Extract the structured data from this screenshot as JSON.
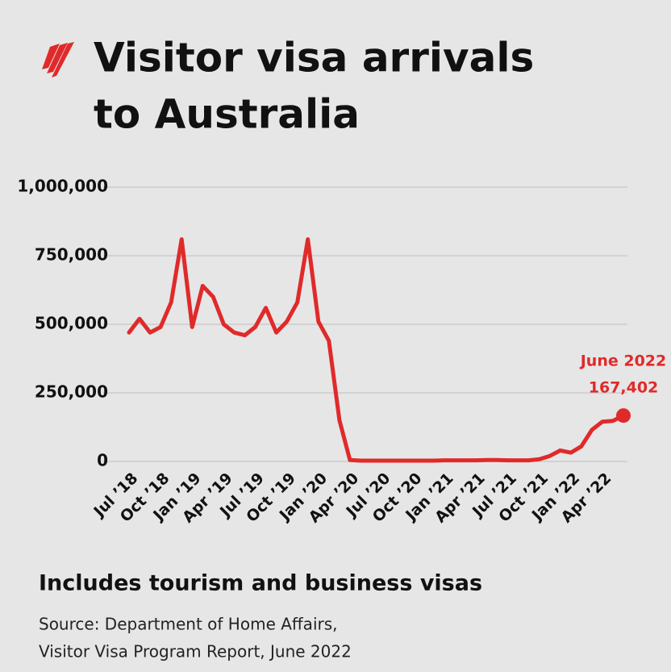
{
  "chart_data": {
    "type": "line",
    "title": [
      "Visitor visa arrivals",
      "to Australia"
    ],
    "subtitle": "Includes tourism and business visas",
    "source": [
      "Source: Department of Home Affairs,",
      "Visitor Visa Program Report, June 2022"
    ],
    "categories": [
      "Jul ’18",
      null,
      null,
      "Oct ’18",
      null,
      null,
      "Jan ’19",
      null,
      null,
      "Apr ’19",
      null,
      null,
      "Jul ’19",
      null,
      null,
      "Oct ’19",
      null,
      null,
      "Jan ’20",
      null,
      null,
      "Apr ’20",
      null,
      null,
      "Jul ’20",
      null,
      null,
      "Oct ’20",
      null,
      null,
      "Jan ’21",
      null,
      null,
      "Apr ’21",
      null,
      null,
      "Jul ’21",
      null,
      null,
      "Oct ’21",
      null,
      null,
      "Jan ’22",
      null,
      null,
      "Apr ’22",
      null,
      null
    ],
    "values": [
      470000,
      520000,
      470000,
      490000,
      580000,
      810000,
      490000,
      640000,
      600000,
      500000,
      470000,
      460000,
      490000,
      560000,
      470000,
      510000,
      580000,
      810000,
      510000,
      440000,
      150000,
      5000,
      3000,
      3000,
      3000,
      3000,
      3000,
      3000,
      3000,
      3000,
      4000,
      4000,
      4000,
      4000,
      5000,
      5000,
      4000,
      4000,
      4000,
      8000,
      20000,
      40000,
      32000,
      55000,
      115000,
      145000,
      148000,
      167402
    ],
    "value_labels": [
      null,
      null,
      null,
      null,
      null,
      null,
      null,
      null,
      null,
      null,
      null,
      null,
      null,
      null,
      null,
      null,
      null,
      null,
      null,
      null,
      null,
      null,
      null,
      null,
      null,
      null,
      null,
      null,
      null,
      null,
      null,
      null,
      null,
      null,
      null,
      null,
      null,
      null,
      null,
      null,
      null,
      null,
      null,
      null,
      null,
      null,
      null,
      "167,402"
    ],
    "annotation": "June 2022",
    "color": "#e02a2a",
    "ylim": [
      0,
      1000000
    ],
    "yticks": [
      0,
      {
        "value": 250000,
        "label": "250,000"
      },
      {
        "value": 500000,
        "label": "500,000"
      },
      {
        "value": 750000,
        "label": "750,000"
      },
      {
        "value": 1000000,
        "label": "1,000,000"
      }
    ],
    "grid": true
  }
}
